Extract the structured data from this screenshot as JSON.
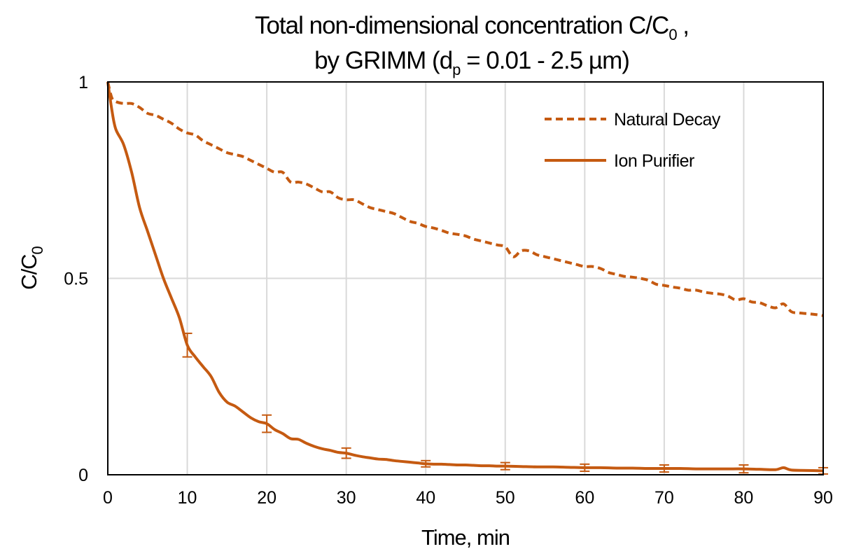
{
  "chart_data": {
    "type": "line",
    "title": {
      "line1_main": "Total non-dimensional concentration C/C",
      "line1_sub": "0",
      "line1_tail": " ,",
      "line2_main": "by GRIMM (d",
      "line2_sub": "p",
      "line2_tail": " = 0.01 - 2.5 µm)"
    },
    "xlabel": "Time, min",
    "ylabel": {
      "main": "C/C",
      "sub": "0"
    },
    "xlim": [
      0,
      90
    ],
    "ylim": [
      0,
      1
    ],
    "x_ticks": [
      0,
      10,
      20,
      30,
      40,
      50,
      60,
      70,
      80,
      90
    ],
    "y_ticks": [
      {
        "value": 0,
        "label": "0"
      },
      {
        "value": 0.5,
        "label": "0.5"
      },
      {
        "value": 1,
        "label": "1"
      }
    ],
    "grid": "vertical",
    "legend_position": "top-right",
    "series": [
      {
        "name": "Natural Decay",
        "style": "dashed",
        "color": "#c55a11",
        "points": [
          [
            0,
            1.0
          ],
          [
            0.5,
            0.96
          ],
          [
            1,
            0.95
          ],
          [
            2,
            0.945
          ],
          [
            3,
            0.945
          ],
          [
            4,
            0.935
          ],
          [
            5,
            0.92
          ],
          [
            6,
            0.915
          ],
          [
            7,
            0.905
          ],
          [
            8,
            0.895
          ],
          [
            9,
            0.88
          ],
          [
            10,
            0.87
          ],
          [
            11,
            0.865
          ],
          [
            12,
            0.85
          ],
          [
            13,
            0.84
          ],
          [
            14,
            0.83
          ],
          [
            15,
            0.82
          ],
          [
            16,
            0.815
          ],
          [
            17,
            0.81
          ],
          [
            18,
            0.8
          ],
          [
            19,
            0.79
          ],
          [
            20,
            0.78
          ],
          [
            21,
            0.77
          ],
          [
            22,
            0.77
          ],
          [
            23,
            0.745
          ],
          [
            24,
            0.745
          ],
          [
            25,
            0.74
          ],
          [
            26,
            0.73
          ],
          [
            27,
            0.72
          ],
          [
            28,
            0.72
          ],
          [
            29,
            0.705
          ],
          [
            30,
            0.7
          ],
          [
            31,
            0.7
          ],
          [
            32,
            0.69
          ],
          [
            33,
            0.68
          ],
          [
            34,
            0.675
          ],
          [
            35,
            0.67
          ],
          [
            36,
            0.665
          ],
          [
            37,
            0.655
          ],
          [
            38,
            0.645
          ],
          [
            39,
            0.64
          ],
          [
            40,
            0.632
          ],
          [
            41,
            0.628
          ],
          [
            42,
            0.622
          ],
          [
            43,
            0.615
          ],
          [
            44,
            0.612
          ],
          [
            45,
            0.608
          ],
          [
            46,
            0.6
          ],
          [
            47,
            0.595
          ],
          [
            48,
            0.59
          ],
          [
            49,
            0.585
          ],
          [
            50,
            0.58
          ],
          [
            51,
            0.555
          ],
          [
            52,
            0.57
          ],
          [
            53,
            0.57
          ],
          [
            54,
            0.56
          ],
          [
            55,
            0.555
          ],
          [
            56,
            0.55
          ],
          [
            57,
            0.545
          ],
          [
            58,
            0.54
          ],
          [
            59,
            0.535
          ],
          [
            60,
            0.53
          ],
          [
            61,
            0.53
          ],
          [
            62,
            0.525
          ],
          [
            63,
            0.515
          ],
          [
            64,
            0.51
          ],
          [
            65,
            0.505
          ],
          [
            66,
            0.503
          ],
          [
            67,
            0.5
          ],
          [
            68,
            0.495
          ],
          [
            69,
            0.485
          ],
          [
            70,
            0.482
          ],
          [
            71,
            0.478
          ],
          [
            72,
            0.475
          ],
          [
            73,
            0.47
          ],
          [
            74,
            0.47
          ],
          [
            75,
            0.465
          ],
          [
            76,
            0.462
          ],
          [
            77,
            0.46
          ],
          [
            78,
            0.455
          ],
          [
            79,
            0.445
          ],
          [
            80,
            0.448
          ],
          [
            81,
            0.44
          ],
          [
            82,
            0.438
          ],
          [
            83,
            0.43
          ],
          [
            84,
            0.425
          ],
          [
            85,
            0.435
          ],
          [
            86,
            0.415
          ],
          [
            87,
            0.412
          ],
          [
            88,
            0.41
          ],
          [
            89,
            0.408
          ],
          [
            90,
            0.405
          ]
        ]
      },
      {
        "name": "Ion Purifier",
        "style": "solid",
        "color": "#c55a11",
        "points": [
          [
            0,
            1.0
          ],
          [
            0.5,
            0.93
          ],
          [
            1,
            0.88
          ],
          [
            2,
            0.84
          ],
          [
            3,
            0.77
          ],
          [
            4,
            0.68
          ],
          [
            5,
            0.62
          ],
          [
            6,
            0.56
          ],
          [
            7,
            0.5
          ],
          [
            8,
            0.45
          ],
          [
            9,
            0.4
          ],
          [
            10,
            0.33
          ],
          [
            11,
            0.3
          ],
          [
            12,
            0.275
          ],
          [
            13,
            0.25
          ],
          [
            14,
            0.21
          ],
          [
            15,
            0.185
          ],
          [
            16,
            0.175
          ],
          [
            17,
            0.16
          ],
          [
            18,
            0.145
          ],
          [
            19,
            0.135
          ],
          [
            20,
            0.13
          ],
          [
            21,
            0.115
          ],
          [
            22,
            0.105
          ],
          [
            23,
            0.092
          ],
          [
            24,
            0.09
          ],
          [
            25,
            0.08
          ],
          [
            26,
            0.072
          ],
          [
            27,
            0.066
          ],
          [
            28,
            0.062
          ],
          [
            29,
            0.057
          ],
          [
            30,
            0.055
          ],
          [
            31,
            0.05
          ],
          [
            32,
            0.046
          ],
          [
            33,
            0.043
          ],
          [
            34,
            0.04
          ],
          [
            35,
            0.039
          ],
          [
            36,
            0.036
          ],
          [
            37,
            0.034
          ],
          [
            38,
            0.032
          ],
          [
            39,
            0.03
          ],
          [
            40,
            0.028
          ],
          [
            41,
            0.027
          ],
          [
            42,
            0.027
          ],
          [
            43,
            0.026
          ],
          [
            44,
            0.025
          ],
          [
            45,
            0.025
          ],
          [
            46,
            0.024
          ],
          [
            47,
            0.023
          ],
          [
            48,
            0.023
          ],
          [
            49,
            0.022
          ],
          [
            50,
            0.022
          ],
          [
            52,
            0.021
          ],
          [
            54,
            0.02
          ],
          [
            56,
            0.02
          ],
          [
            58,
            0.019
          ],
          [
            60,
            0.018
          ],
          [
            62,
            0.018
          ],
          [
            64,
            0.017
          ],
          [
            66,
            0.017
          ],
          [
            68,
            0.016
          ],
          [
            70,
            0.016
          ],
          [
            72,
            0.016
          ],
          [
            74,
            0.015
          ],
          [
            76,
            0.015
          ],
          [
            78,
            0.015
          ],
          [
            80,
            0.015
          ],
          [
            82,
            0.014
          ],
          [
            84,
            0.013
          ],
          [
            85,
            0.018
          ],
          [
            86,
            0.012
          ],
          [
            88,
            0.011
          ],
          [
            90,
            0.01
          ]
        ],
        "error_bars": [
          {
            "x": 10,
            "y": 0.33,
            "err": 0.03
          },
          {
            "x": 20,
            "y": 0.13,
            "err": 0.022
          },
          {
            "x": 30,
            "y": 0.055,
            "err": 0.013
          },
          {
            "x": 40,
            "y": 0.028,
            "err": 0.008
          },
          {
            "x": 50,
            "y": 0.022,
            "err": 0.009
          },
          {
            "x": 60,
            "y": 0.018,
            "err": 0.009
          },
          {
            "x": 70,
            "y": 0.016,
            "err": 0.009
          },
          {
            "x": 80,
            "y": 0.015,
            "err": 0.01
          },
          {
            "x": 90,
            "y": 0.01,
            "err": 0.008
          }
        ]
      }
    ]
  }
}
